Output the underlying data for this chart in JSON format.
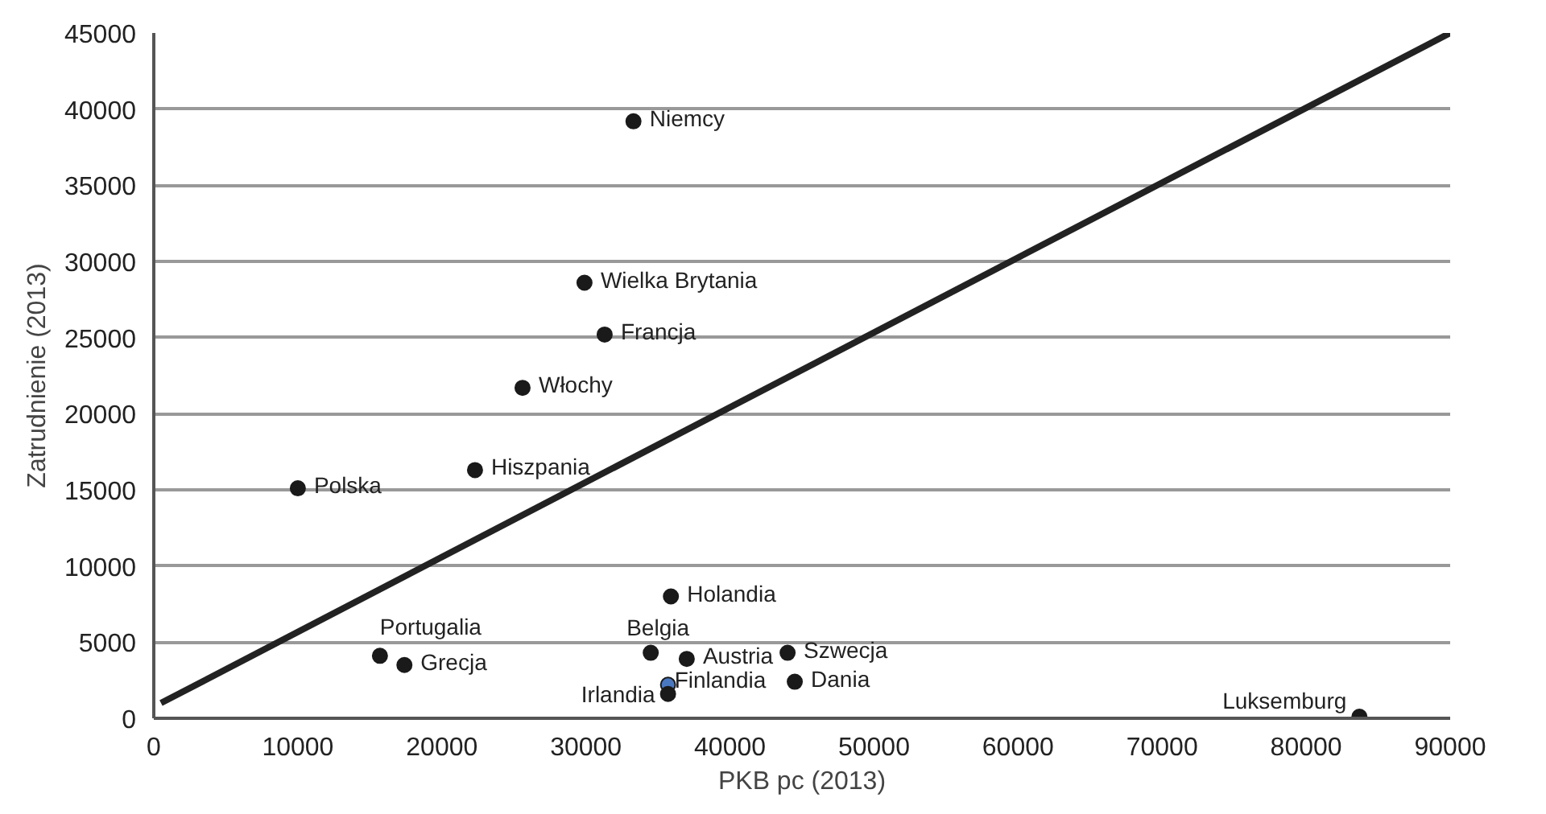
{
  "chart_data": {
    "type": "scatter",
    "xlabel": "PKB pc (2013)",
    "ylabel": "Zatrudnienie (2013)",
    "xlim": [
      0,
      90000
    ],
    "ylim": [
      0,
      45000
    ],
    "xticks": [
      0,
      10000,
      20000,
      30000,
      40000,
      50000,
      60000,
      70000,
      80000,
      90000
    ],
    "yticks": [
      0,
      5000,
      10000,
      15000,
      20000,
      25000,
      30000,
      35000,
      40000,
      45000
    ],
    "grid": "y",
    "series": [
      {
        "marker": "circle",
        "color": "#1a1a1a",
        "x": [
          33300,
          29900,
          31300,
          25600,
          22300,
          10000,
          35900,
          34500,
          37000,
          44000,
          44500,
          35700,
          35700,
          15700,
          17400,
          83700
        ],
        "values": [
          39200,
          28600,
          25200,
          21700,
          16300,
          15100,
          8000,
          4300,
          3900,
          4300,
          2400,
          2200,
          1600,
          4100,
          3500,
          100
        ],
        "colors": [
          "#1a1a1a",
          "#1a1a1a",
          "#1a1a1a",
          "#1a1a1a",
          "#1a1a1a",
          "#1a1a1a",
          "#1a1a1a",
          "#1a1a1a",
          "#1a1a1a",
          "#1a1a1a",
          "#1a1a1a",
          "#4a78c0",
          "#1a1a1a",
          "#1a1a1a",
          "#1a1a1a",
          "#1a1a1a"
        ]
      },
      {
        "type": "line",
        "marker": "none",
        "color": "#222222",
        "x": [
          500,
          90000
        ],
        "values": [
          1000,
          45000
        ]
      }
    ],
    "annotations": [
      {
        "text": "Niemcy",
        "x": 33300,
        "y": 39200
      },
      {
        "text": "Wielka Brytania",
        "x": 29900,
        "y": 28600
      },
      {
        "text": "Francja",
        "x": 31300,
        "y": 25200
      },
      {
        "text": "Włochy",
        "x": 25600,
        "y": 21700
      },
      {
        "text": "Hiszpania",
        "x": 22300,
        "y": 16300
      },
      {
        "text": "Polska",
        "x": 10000,
        "y": 15100
      },
      {
        "text": "Holandia",
        "x": 35900,
        "y": 8000
      },
      {
        "text": "Belgia",
        "x": 34500,
        "y": 4300
      },
      {
        "text": "Austria",
        "x": 37000,
        "y": 3900
      },
      {
        "text": "Szwecja",
        "x": 44000,
        "y": 4300
      },
      {
        "text": "Dania",
        "x": 44500,
        "y": 2400
      },
      {
        "text": "Finlandia",
        "x": 35700,
        "y": 2200
      },
      {
        "text": "Irlandia",
        "x": 35700,
        "y": 1600
      },
      {
        "text": "Portugalia",
        "x": 15700,
        "y": 4100
      },
      {
        "text": "Grecja",
        "x": 17400,
        "y": 3500
      },
      {
        "text": "Luksemburg",
        "x": 83700,
        "y": 100
      }
    ]
  }
}
